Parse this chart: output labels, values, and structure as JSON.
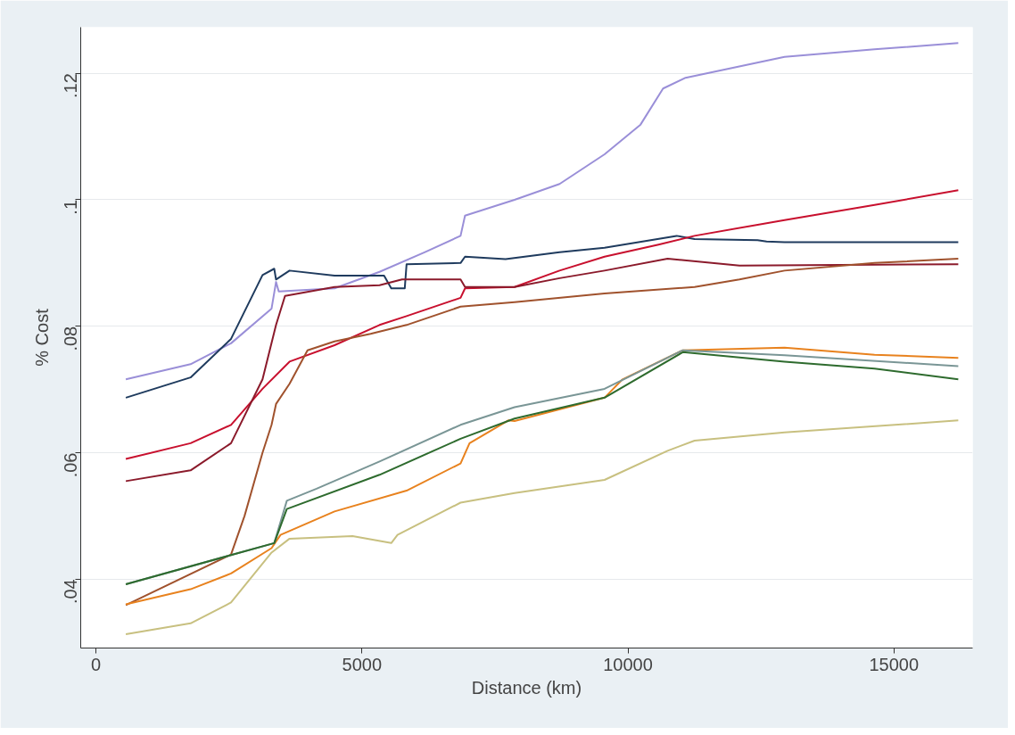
{
  "chart_data": {
    "type": "line",
    "xlabel": "Distance (km)",
    "ylabel": "% Cost",
    "xlim": [
      -288,
      16480
    ],
    "ylim": [
      0.0291,
      0.1273
    ],
    "xticks": [
      0,
      5000,
      10000,
      15000
    ],
    "yticks": [
      {
        "value": 0.04,
        "label": ".04"
      },
      {
        "value": 0.06,
        "label": ".06"
      },
      {
        "value": 0.08,
        "label": ".08"
      },
      {
        "value": 0.1,
        "label": ".1"
      },
      {
        "value": 0.12,
        "label": ".12"
      }
    ],
    "grid": "y",
    "marker": "none",
    "line_style": "solid",
    "series": [
      {
        "color": "#9a8fd8",
        "x": [
          560,
          1777,
          2538,
          3300,
          3384,
          3435,
          4484,
          5330,
          6176,
          6853,
          6937,
          7868,
          8714,
          9560,
          10237,
          10660,
          11083,
          12944,
          14636,
          16210
        ],
        "values": [
          0.0716,
          0.074,
          0.0773,
          0.0828,
          0.087,
          0.0855,
          0.086,
          0.0886,
          0.0917,
          0.0943,
          0.0975,
          0.1,
          0.1025,
          0.1072,
          0.1119,
          0.1176,
          0.1193,
          0.1226,
          0.1238,
          0.1248
        ]
      },
      {
        "color": "#1f3b5e",
        "x": [
          560,
          1777,
          2538,
          3130,
          3350,
          3384,
          3638,
          4484,
          5415,
          5550,
          5804,
          5838,
          6853,
          6937,
          7699,
          8714,
          9560,
          10914,
          11252,
          12437,
          12606,
          12944,
          16210
        ],
        "values": [
          0.0687,
          0.0719,
          0.078,
          0.0881,
          0.0891,
          0.0874,
          0.0888,
          0.088,
          0.088,
          0.086,
          0.086,
          0.0898,
          0.09,
          0.091,
          0.0906,
          0.0917,
          0.0924,
          0.0943,
          0.0938,
          0.0936,
          0.0934,
          0.0933,
          0.0933
        ]
      },
      {
        "color": "#c8102e",
        "x": [
          560,
          1777,
          2538,
          3130,
          3638,
          4484,
          5330,
          5838,
          6853,
          6937,
          7868,
          8714,
          9560,
          10575,
          11252,
          12944,
          14636,
          16210
        ],
        "values": [
          0.059,
          0.0615,
          0.0644,
          0.0701,
          0.0744,
          0.077,
          0.0802,
          0.0816,
          0.0845,
          0.086,
          0.0862,
          0.0888,
          0.091,
          0.0929,
          0.0943,
          0.0968,
          0.0992,
          0.1015
        ]
      },
      {
        "color": "#8b1a2b",
        "x": [
          560,
          1777,
          2538,
          3130,
          3384,
          3553,
          4484,
          5330,
          5753,
          6853,
          6937,
          7868,
          8714,
          9560,
          10745,
          12098,
          16210
        ],
        "values": [
          0.0555,
          0.0572,
          0.0615,
          0.0716,
          0.0802,
          0.0848,
          0.0862,
          0.0865,
          0.0874,
          0.0874,
          0.0862,
          0.0862,
          0.0876,
          0.0888,
          0.0907,
          0.0896,
          0.0898
        ]
      },
      {
        "color": "#a0522d",
        "x": [
          560,
          2538,
          2792,
          3130,
          3300,
          3384,
          3638,
          3976,
          4484,
          5161,
          5838,
          6853,
          7868,
          9560,
          11252,
          12098,
          12944,
          14636,
          16210
        ],
        "values": [
          0.0359,
          0.0439,
          0.05,
          0.06,
          0.0644,
          0.0677,
          0.0709,
          0.0762,
          0.0776,
          0.0788,
          0.0802,
          0.0831,
          0.0838,
          0.0852,
          0.0862,
          0.0874,
          0.0888,
          0.09,
          0.0907
        ]
      },
      {
        "color": "#e8821e",
        "x": [
          560,
          1777,
          2538,
          3300,
          3469,
          4484,
          5838,
          6853,
          7022,
          7750,
          7868,
          9560,
          9898,
          11032,
          12944,
          14636,
          16210
        ],
        "values": [
          0.036,
          0.0384,
          0.0409,
          0.0449,
          0.047,
          0.0507,
          0.054,
          0.0583,
          0.0615,
          0.0651,
          0.065,
          0.0687,
          0.0716,
          0.0762,
          0.0766,
          0.0755,
          0.075
        ]
      },
      {
        "color": "#7a9696",
        "x": [
          560,
          2538,
          3350,
          3587,
          4146,
          5330,
          6853,
          7868,
          9560,
          11032,
          12944,
          16210
        ],
        "values": [
          0.0392,
          0.0438,
          0.0457,
          0.0524,
          0.0543,
          0.0586,
          0.0644,
          0.0672,
          0.0701,
          0.0762,
          0.0754,
          0.0737
        ]
      },
      {
        "color": "#2e6b2e",
        "x": [
          560,
          2538,
          3350,
          3587,
          5330,
          6853,
          7868,
          9560,
          11032,
          12944,
          14636,
          16210
        ],
        "values": [
          0.0392,
          0.0438,
          0.0457,
          0.0511,
          0.0565,
          0.0622,
          0.0654,
          0.0687,
          0.0759,
          0.0744,
          0.0733,
          0.0716
        ]
      },
      {
        "color": "#c8c080",
        "x": [
          560,
          1777,
          2538,
          3300,
          3638,
          4822,
          5550,
          5668,
          6853,
          7868,
          9560,
          10745,
          11252,
          12944,
          16210
        ],
        "values": [
          0.0313,
          0.033,
          0.0363,
          0.0442,
          0.0464,
          0.0468,
          0.0457,
          0.047,
          0.0521,
          0.0536,
          0.0557,
          0.0603,
          0.0619,
          0.0632,
          0.0651
        ]
      }
    ]
  }
}
